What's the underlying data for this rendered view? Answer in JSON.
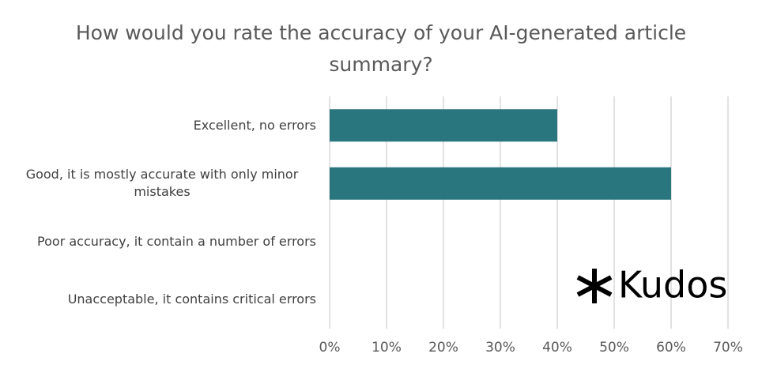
{
  "chart_data": {
    "type": "hbar",
    "title": "How would you rate the accuracy of your AI-generated article summary?",
    "categories": [
      "Excellent, no errors",
      "Good, it is mostly accurate with only minor mistakes",
      "Poor accuracy, it contain a number of errors",
      "Unacceptable, it contains critical errors"
    ],
    "values": [
      40,
      60,
      0,
      0
    ],
    "color": "#29767f",
    "xlim": [
      0,
      70
    ],
    "xticks": [
      {
        "value": 0,
        "label": "0%"
      },
      {
        "value": 10,
        "label": "10%"
      },
      {
        "value": 20,
        "label": "20%"
      },
      {
        "value": 30,
        "label": "30%"
      },
      {
        "value": 40,
        "label": "40%"
      },
      {
        "value": 50,
        "label": "50%"
      },
      {
        "value": 60,
        "label": "60%"
      },
      {
        "value": 70,
        "label": "70%"
      }
    ],
    "grid": true,
    "logo": "Kudos"
  }
}
